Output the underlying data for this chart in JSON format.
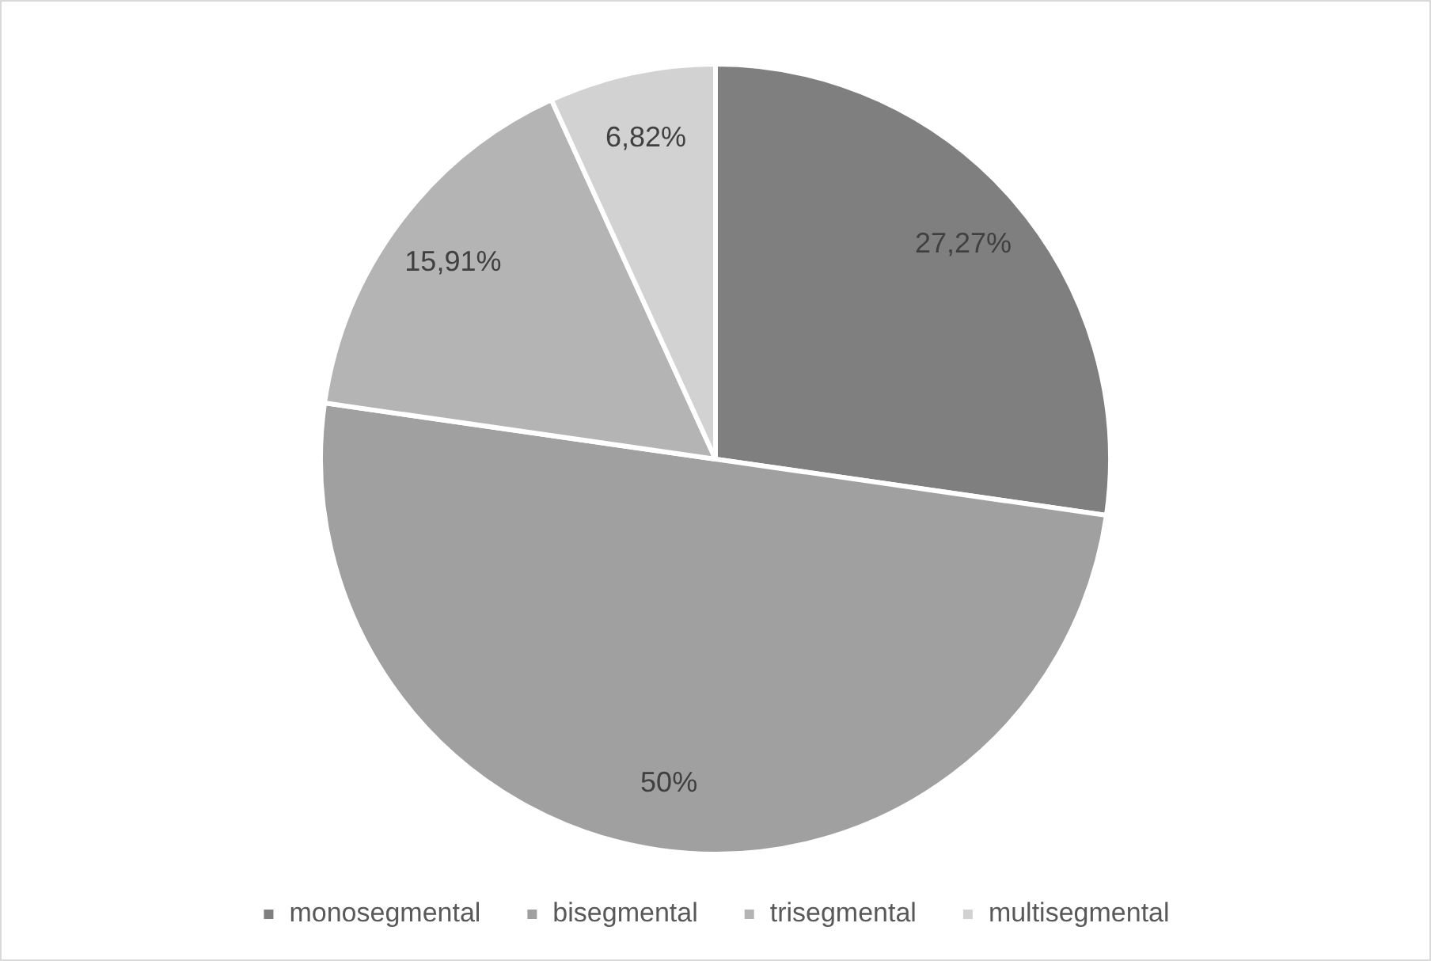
{
  "chart_data": {
    "type": "pie",
    "categories": [
      "monosegmental",
      "bisegmental",
      "trisegmental",
      "multisegmental"
    ],
    "values": [
      27.27,
      50,
      15.91,
      6.82
    ],
    "colors": [
      "#7f7f7f",
      "#a0a0a0",
      "#b4b4b4",
      "#d2d2d2"
    ],
    "value_labels": [
      "27,27%",
      "50%",
      "15,91%",
      "6,82%"
    ],
    "legend": "bottom"
  }
}
